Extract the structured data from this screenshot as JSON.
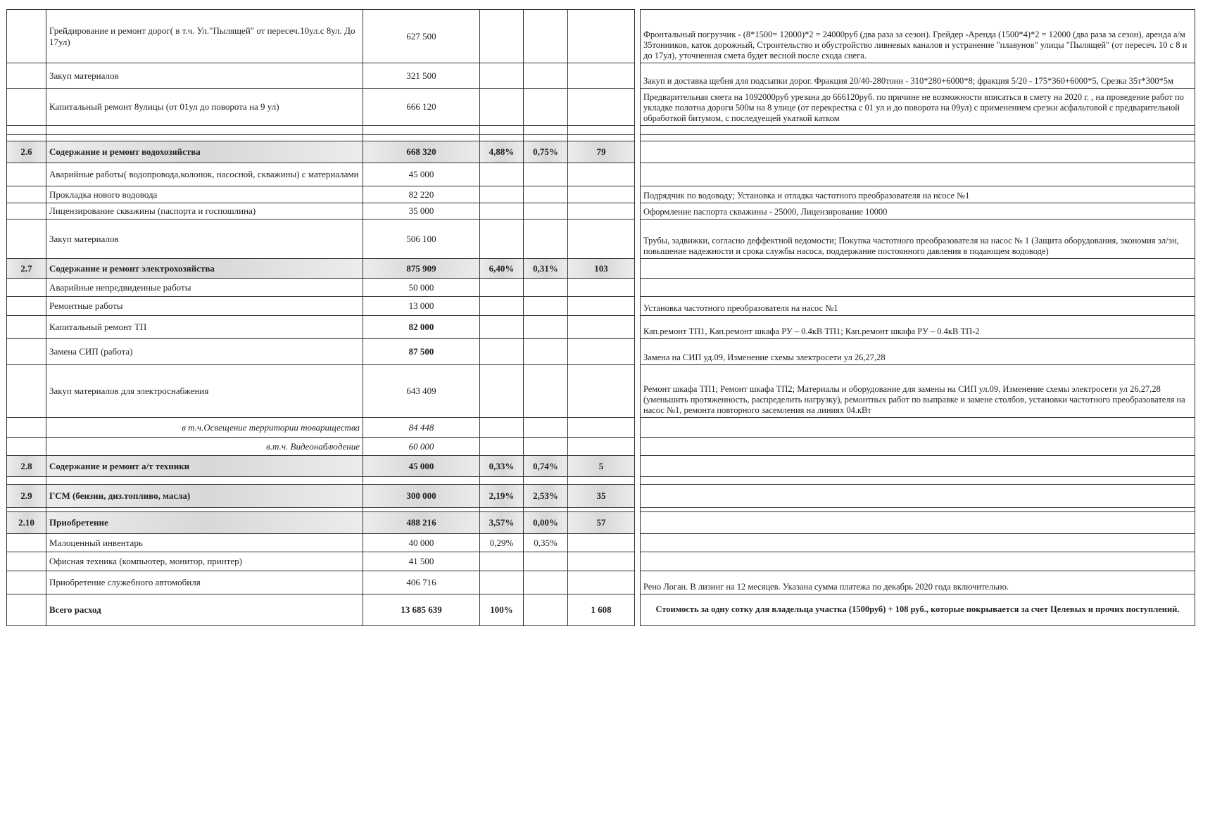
{
  "table": {
    "rows": [
      {
        "name": "Грейдирование и ремонт дорог( в т.ч. Ул.\"Пылящей\" от пересеч.10ул.с 8ул. До 17ул)",
        "amount": "627 500",
        "note": "Фронтальный погрузчик - (8*1500= 12000)*2 = 24000руб (два раза за сезон). Грейдер -Аренда (1500*4)*2 = 12000 (два раза за сезон), аренда а/м 35тонников, каток дорожный, Строительство и обустройство ливневых каналов и устранение \"плавунов\" улицы \"Пылящей\" (от пересеч. 10 с 8 и до 17ул), уточненная смета будет весной после схода снега."
      },
      {
        "name": "Закуп материалов",
        "amount": "321 500",
        "note": "Закуп и доставка щебня для подсыпки дорог. Фракция 20/40-280тонн - 310*280+6000*8; фракция 5/20 - 175*360+6000*5, Срезка 35т*300*5м"
      },
      {
        "name": "Капитальный ремонт 8улицы (от 01ул до поворота на 9 ул)",
        "amount": "666 120",
        "note": "Предварительная смета на 1092000руб урезана до 666120руб. по причине не возможности вписаться в смету на 2020 г. , на проведение работ по укладке полотна дороги 500м на 8 улице (от перекрестка с 01 ул и до поворота на 09ул) с применением срезки асфальтовой с предварительной обработкой битумом, с последуещей укаткой катком"
      },
      {
        "num": "2.6",
        "name": "Содержание и ремонт водохозяйства",
        "amount": "668 320",
        "pct1": "4,88%",
        "pct2": "0,75%",
        "per": "79"
      },
      {
        "name": "Аварийные работы( водопровода,колонок, насосной, скважины) с материалами",
        "amount": "45 000"
      },
      {
        "name": "Прокладка нового водовода",
        "amount": "82 220",
        "note": "Подрядчик по водоводу; Установка и отладка частотного преобразователя на нсосе №1"
      },
      {
        "name": "Лицензирование скважины (паспорта и госпошлина)",
        "amount": "35 000",
        "note": "Оформление паспорта скважины - 25000, Лицензирование 10000"
      },
      {
        "name": "Закуп материалов",
        "amount": "506 100",
        "note": "Трубы, задвижки, согласно деффектной ведомости; Покупка частотного преобразователя на насос № 1 (Защита оборудования, экономия эл/эн, повышение надежности и срока службы насоса, поддержание постоянного давления в подающем водоводе)"
      },
      {
        "num": "2.7",
        "name": "Содержание и ремонт электрохозяйства",
        "amount": "875 909",
        "pct1": "6,40%",
        "pct2": "0,31%",
        "per": "103"
      },
      {
        "name": "Аварийные непредвиденные работы",
        "amount": "50 000"
      },
      {
        "name": "Ремонтные работы",
        "amount": "13 000",
        "note": "Установка частотного преобразователя на насос №1"
      },
      {
        "name": "Капитальный ремонт ТП",
        "amount": "82 000",
        "note": "Кап.ремонт ТП1, Кап.ремонт шкафа РУ – 0.4кВ ТП1; Кап.ремонт шкафа РУ – 0.4кВ ТП-2"
      },
      {
        "name": "Замена СИП (работа)",
        "amount": "87 500",
        "note": "Замена на СИП уд.09, Изменение схемы электросети ул 26,27,28"
      },
      {
        "name": "Закуп материалов для электроснабжения",
        "amount": "643 409",
        "note": "Ремонт шкафа ТП1; Ремонт шкафа ТП2; Материалы и оборудование для замены на СИП ул.09, Изменение схемы электросети ул 26,27,28 (уменьшить протяженность, распределить нагрузку), ремонтных работ по выправке и замене столбов, установки частотного преобразователя на насос №1, ремонта повторного засемления на линиях 04.кВт"
      },
      {
        "name": "в т.ч.Освещение территории товарищества",
        "amount": "84 448"
      },
      {
        "name": "в.т.ч. Видеонаблюдение",
        "amount": "60 000"
      },
      {
        "num": "2.8",
        "name": "Содержание и ремонт а/т техники",
        "amount": "45 000",
        "pct1": "0,33%",
        "pct2": "0,74%",
        "per": "5"
      },
      {
        "num": "2.9",
        "name": "ГСМ (бензин, диз.топливо, масла)",
        "amount": "300 000",
        "pct1": "2,19%",
        "pct2": "2,53%",
        "per": "35"
      },
      {
        "num": "2.10",
        "name": "Приобретение",
        "amount": "488 216",
        "pct1": "3,57%",
        "pct2": "0,00%",
        "per": "57"
      },
      {
        "name": "Малоценный инвентарь",
        "amount": "40 000",
        "pct1": "0,29%",
        "pct2": "0,35%"
      },
      {
        "name": "Офисная техника (компьютер, монитор, принтер)",
        "amount": "41 500"
      },
      {
        "name": "Приобретение служебного автомобиля",
        "amount": "406 716",
        "note": "Рено Логан. В лизинг на 12 месяцев. Указана сумма платежа по декабрь 2020 года включительно."
      },
      {
        "name": "Всего расход",
        "amount": "13 685 639",
        "pct1": "100%",
        "per": "1 608",
        "note": "Стоимость за одну сотку для владельца участка (1500руб) + 108 руб., которые покрывается за счет Целевых и прочих поступлений."
      }
    ]
  }
}
